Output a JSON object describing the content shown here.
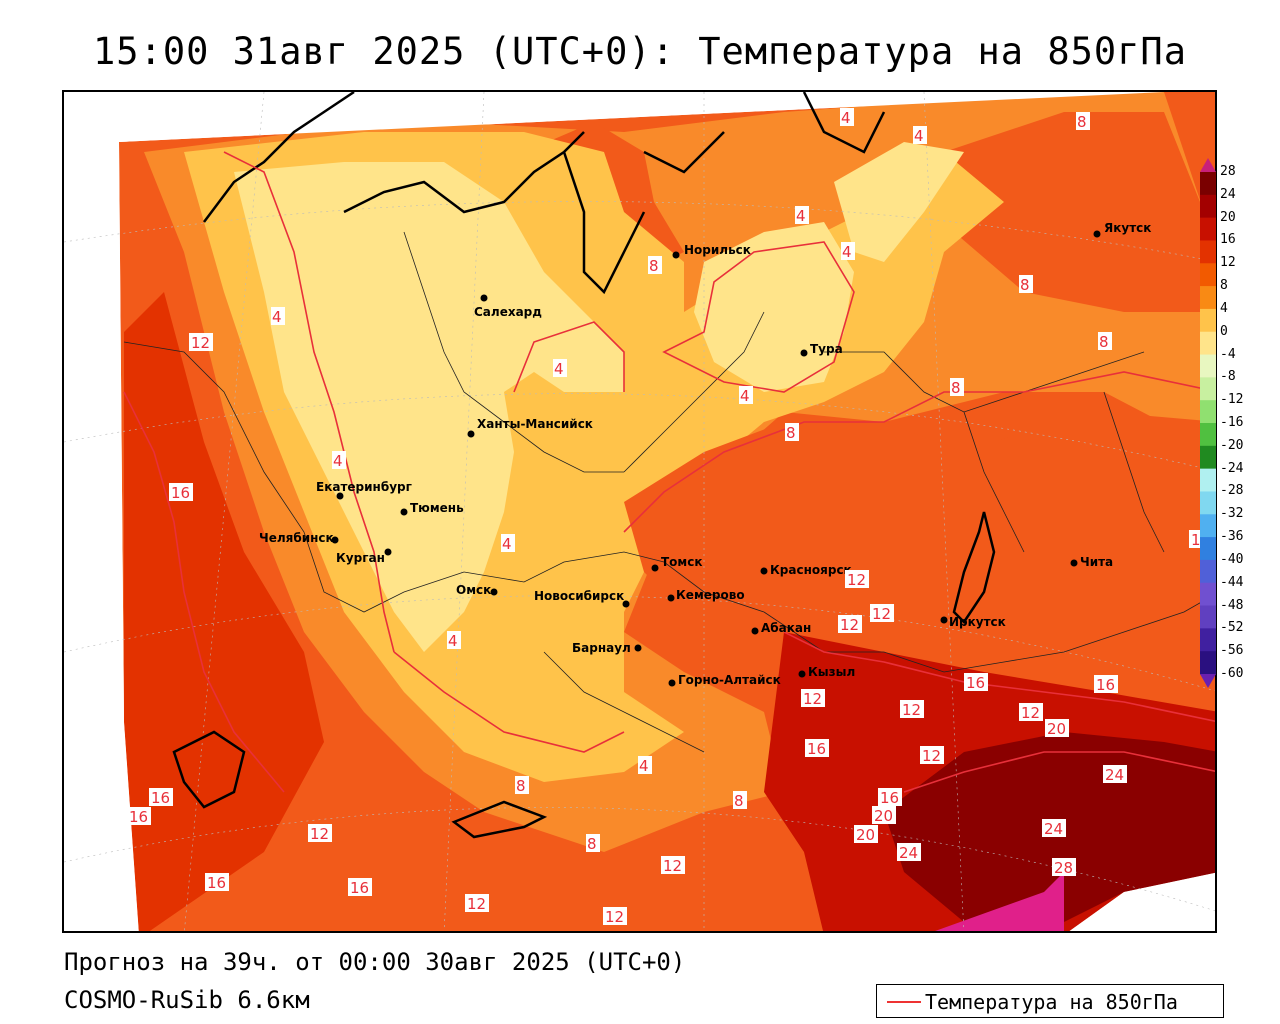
{
  "title": "15:00 31авг 2025 (UTC+0): Температура на 850гПа",
  "footer": {
    "forecast": "Прогноз на 39ч. от 00:00 30авг 2025 (UTC+0)",
    "model": "COSMO-RuSib 6.6км"
  },
  "legend": {
    "label": "Температура на 850гПа",
    "line_color": "#e33a3a"
  },
  "colorbar": {
    "ticks": [
      "28",
      "24",
      "20",
      "16",
      "12",
      "8",
      "4",
      "0",
      "-4",
      "-8",
      "-12",
      "-16",
      "-20",
      "-24",
      "-28",
      "-32",
      "-36",
      "-40",
      "-44",
      "-48",
      "-52",
      "-56",
      "-60"
    ],
    "colors": [
      "#7a0000",
      "#a30000",
      "#c81000",
      "#e33200",
      "#f25a00",
      "#f98a14",
      "#ffc34a",
      "#ffe48a",
      "#e8f7c0",
      "#c8f0a0",
      "#90e070",
      "#50c040",
      "#208a20",
      "#b0f0f0",
      "#80d8f0",
      "#50b0f0",
      "#3080e0",
      "#5060d8",
      "#7050d0",
      "#6040c0",
      "#4020a0",
      "#2a1080",
      "#6a20b0"
    ]
  },
  "cities": [
    {
      "name": "Салехард"
    },
    {
      "name": "Норильск"
    },
    {
      "name": "Якутск"
    },
    {
      "name": "Тура"
    },
    {
      "name": "Ханты-Мансийск"
    },
    {
      "name": "Екатеринбург"
    },
    {
      "name": "Тюмень"
    },
    {
      "name": "Челябинск"
    },
    {
      "name": "Курган"
    },
    {
      "name": "Омск"
    },
    {
      "name": "Новосибирск"
    },
    {
      "name": "Томск"
    },
    {
      "name": "Красноярск"
    },
    {
      "name": "Кемерово"
    },
    {
      "name": "Абакан"
    },
    {
      "name": "Барнаул"
    },
    {
      "name": "Горно-Алтайск"
    },
    {
      "name": "Кызыл"
    },
    {
      "name": "Иркутск"
    },
    {
      "name": "Чита"
    }
  ],
  "isolines": [
    "4",
    "4",
    "8",
    "12",
    "4",
    "4",
    "4",
    "8",
    "4",
    "8",
    "4",
    "8",
    "8",
    "8",
    "4",
    "16",
    "4",
    "4",
    "12",
    "12",
    "12",
    "12",
    "16",
    "12",
    "16",
    "12",
    "12",
    "20",
    "16",
    "16",
    "12",
    "12",
    "16",
    "16",
    "20",
    "20",
    "24",
    "24",
    "24",
    "28",
    "16",
    "12",
    "16",
    "12",
    "12",
    "8",
    "8",
    "4",
    "8"
  ]
}
